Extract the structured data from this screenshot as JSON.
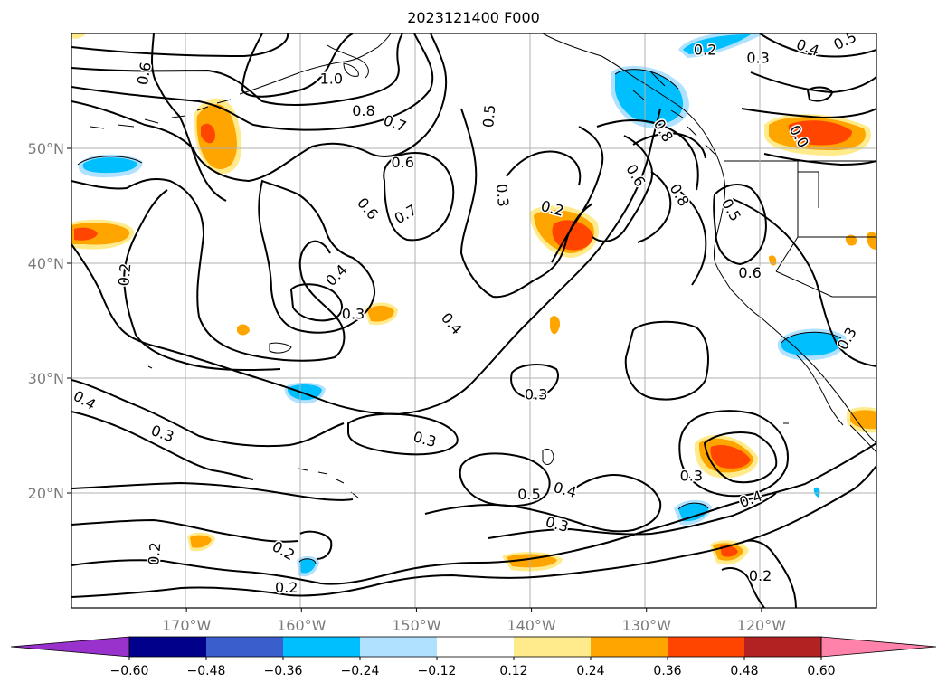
{
  "title": "2023121400 F000",
  "chart_data": {
    "type": "map",
    "projection": "cylindrical",
    "lon_range": [
      -180,
      -110
    ],
    "lat_range": [
      10,
      60
    ],
    "lon_ticks": [
      {
        "value": -170,
        "label": "170°W"
      },
      {
        "value": -160,
        "label": "160°W"
      },
      {
        "value": -150,
        "label": "150°W"
      },
      {
        "value": -140,
        "label": "140°W"
      },
      {
        "value": -130,
        "label": "130°W"
      },
      {
        "value": -120,
        "label": "120°W"
      }
    ],
    "lat_ticks": [
      {
        "value": 20,
        "label": "20°N"
      },
      {
        "value": 30,
        "label": "30°N"
      },
      {
        "value": 40,
        "label": "40°N"
      },
      {
        "value": 50,
        "label": "50°N"
      }
    ],
    "grid": true,
    "colorbar": {
      "ticks": [
        "−0.60",
        "−0.48",
        "−0.36",
        "−0.24",
        "−0.12",
        "0.12",
        "0.24",
        "0.36",
        "0.48",
        "0.60"
      ],
      "colors": [
        "#9932cc",
        "#00008b",
        "#3a5fcd",
        "#00bfff",
        "#b0e2ff",
        "#ffffff",
        "#ffeb8c",
        "#ffa500",
        "#ff4500",
        "#b22222",
        "#ff82ab"
      ],
      "extend": "both"
    },
    "contour_labels": [
      {
        "text": "0.6",
        "lon": -173.6,
        "lat": 56.5,
        "rot": -80
      },
      {
        "text": "1.0",
        "lon": -157.4,
        "lat": 56.0,
        "rot": 0
      },
      {
        "text": "0.8",
        "lon": -154.6,
        "lat": 53.2,
        "rot": 0
      },
      {
        "text": "0.7",
        "lon": -151.9,
        "lat": 52.1,
        "rot": 20
      },
      {
        "text": "0.6",
        "lon": -151.2,
        "lat": 48.7,
        "rot": 0
      },
      {
        "text": "0.6",
        "lon": -154.3,
        "lat": 44.7,
        "rot": 50
      },
      {
        "text": "0.7",
        "lon": -150.9,
        "lat": 44.2,
        "rot": -30
      },
      {
        "text": "0.5",
        "lon": -143.6,
        "lat": 52.8,
        "rot": -85
      },
      {
        "text": "0.3",
        "lon": -142.6,
        "lat": 45.9,
        "rot": 85
      },
      {
        "text": "0.2",
        "lon": -138.2,
        "lat": 44.7,
        "rot": 15
      },
      {
        "text": "0.4",
        "lon": -156.9,
        "lat": 38.9,
        "rot": -45
      },
      {
        "text": "0.3",
        "lon": -155.5,
        "lat": 35.5,
        "rot": 0
      },
      {
        "text": "0.4",
        "lon": -147.0,
        "lat": 34.7,
        "rot": 50
      },
      {
        "text": "0.2",
        "lon": -175.3,
        "lat": 39.0,
        "rot": -85
      },
      {
        "text": "0.4",
        "lon": -178.9,
        "lat": 28.0,
        "rot": 30
      },
      {
        "text": "0.3",
        "lon": -172.1,
        "lat": 25.1,
        "rot": 20
      },
      {
        "text": "0.3",
        "lon": -139.6,
        "lat": 28.5,
        "rot": 0
      },
      {
        "text": "0.3",
        "lon": -149.3,
        "lat": 24.6,
        "rot": 15
      },
      {
        "text": "0.5",
        "lon": -140.2,
        "lat": 19.8,
        "rot": 0
      },
      {
        "text": "0.4",
        "lon": -137.1,
        "lat": 20.2,
        "rot": 15
      },
      {
        "text": "0.3",
        "lon": -137.8,
        "lat": 17.2,
        "rot": 15
      },
      {
        "text": "0.3",
        "lon": -126.1,
        "lat": 21.4,
        "rot": 0
      },
      {
        "text": "0.4",
        "lon": -120.9,
        "lat": 19.4,
        "rot": -20
      },
      {
        "text": "0.2",
        "lon": -172.7,
        "lat": 14.7,
        "rot": -85
      },
      {
        "text": "0.2",
        "lon": -161.6,
        "lat": 14.9,
        "rot": 30
      },
      {
        "text": "0.2",
        "lon": -161.3,
        "lat": 11.7,
        "rot": 0
      },
      {
        "text": "0.2",
        "lon": -120.1,
        "lat": 12.7,
        "rot": 0
      },
      {
        "text": "0.2",
        "lon": -124.9,
        "lat": 58.5,
        "rot": 0
      },
      {
        "text": "0.3",
        "lon": -120.3,
        "lat": 57.8,
        "rot": 0
      },
      {
        "text": "0.4",
        "lon": -116.0,
        "lat": 58.7,
        "rot": 20
      },
      {
        "text": "0.5",
        "lon": -112.7,
        "lat": 59.3,
        "rot": -25
      },
      {
        "text": "0.8",
        "lon": -128.6,
        "lat": 51.5,
        "rot": 60
      },
      {
        "text": "0.6",
        "lon": -131.0,
        "lat": 47.6,
        "rot": 60
      },
      {
        "text": "0.8",
        "lon": -127.2,
        "lat": 45.9,
        "rot": 60
      },
      {
        "text": "0.5",
        "lon": -122.7,
        "lat": 44.6,
        "rot": 60
      },
      {
        "text": "0.6",
        "lon": -121.0,
        "lat": 39.1,
        "rot": 0
      },
      {
        "text": "0.0",
        "lon": -116.8,
        "lat": 51.0,
        "rot": 60
      },
      {
        "text": "0.3",
        "lon": -112.5,
        "lat": 33.4,
        "rot": -60
      }
    ]
  }
}
